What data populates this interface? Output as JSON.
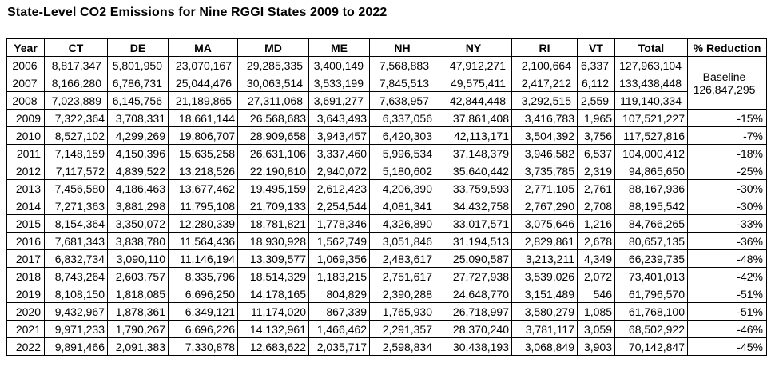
{
  "chart_data": {
    "type": "table",
    "title": "State-Level CO2 Emissions for Nine RGGI States 2009 to 2022",
    "columns": [
      "Year",
      "CT",
      "DE",
      "MA",
      "MD",
      "ME",
      "NH",
      "NY",
      "RI",
      "VT",
      "Total",
      "% Reduction"
    ],
    "baseline_label": "Baseline",
    "baseline_value": "126,847,295",
    "rows": [
      {
        "year": "2006",
        "values": [
          "8,817,347",
          "5,801,950",
          "23,070,167",
          "29,285,335",
          "3,400,149",
          "7,568,883",
          "47,912,271",
          "2,100,664",
          "6,337",
          "127,963,104"
        ],
        "reduction": ""
      },
      {
        "year": "2007",
        "values": [
          "8,166,280",
          "6,786,731",
          "25,044,476",
          "30,063,514",
          "3,533,199",
          "7,845,513",
          "49,575,411",
          "2,417,212",
          "6,112",
          "133,438,448"
        ],
        "reduction": ""
      },
      {
        "year": "2008",
        "values": [
          "7,023,889",
          "6,145,756",
          "21,189,865",
          "27,311,068",
          "3,691,277",
          "7,638,957",
          "42,844,448",
          "3,292,515",
          "2,559",
          "119,140,334"
        ],
        "reduction": ""
      },
      {
        "year": "2009",
        "values": [
          "7,322,364",
          "3,708,331",
          "18,661,144",
          "26,568,683",
          "3,643,493",
          "6,337,056",
          "37,861,408",
          "3,416,783",
          "1,965",
          "107,521,227"
        ],
        "reduction": "-15%"
      },
      {
        "year": "2010",
        "values": [
          "8,527,102",
          "4,299,269",
          "19,806,707",
          "28,909,658",
          "3,943,457",
          "6,420,303",
          "42,113,171",
          "3,504,392",
          "3,756",
          "117,527,816"
        ],
        "reduction": "-7%"
      },
      {
        "year": "2011",
        "values": [
          "7,148,159",
          "4,150,396",
          "15,635,258",
          "26,631,106",
          "3,337,460",
          "5,996,534",
          "37,148,379",
          "3,946,582",
          "6,537",
          "104,000,412"
        ],
        "reduction": "-18%"
      },
      {
        "year": "2012",
        "values": [
          "7,117,572",
          "4,839,522",
          "13,218,526",
          "22,190,810",
          "2,940,072",
          "5,180,602",
          "35,640,442",
          "3,735,785",
          "2,319",
          "94,865,650"
        ],
        "reduction": "-25%"
      },
      {
        "year": "2013",
        "values": [
          "7,456,580",
          "4,186,463",
          "13,677,462",
          "19,495,159",
          "2,612,423",
          "4,206,390",
          "33,759,593",
          "2,771,105",
          "2,761",
          "88,167,936"
        ],
        "reduction": "-30%"
      },
      {
        "year": "2014",
        "values": [
          "7,271,363",
          "3,881,298",
          "11,795,108",
          "21,709,133",
          "2,254,544",
          "4,081,341",
          "34,432,758",
          "2,767,290",
          "2,708",
          "88,195,542"
        ],
        "reduction": "-30%"
      },
      {
        "year": "2015",
        "values": [
          "8,154,364",
          "3,350,072",
          "12,280,339",
          "18,781,821",
          "1,778,346",
          "4,326,890",
          "33,017,571",
          "3,075,646",
          "1,216",
          "84,766,265"
        ],
        "reduction": "-33%"
      },
      {
        "year": "2016",
        "values": [
          "7,681,343",
          "3,838,780",
          "11,564,436",
          "18,930,928",
          "1,562,749",
          "3,051,846",
          "31,194,513",
          "2,829,861",
          "2,678",
          "80,657,135"
        ],
        "reduction": "-36%"
      },
      {
        "year": "2017",
        "values": [
          "6,832,734",
          "3,090,110",
          "11,146,194",
          "13,309,577",
          "1,069,356",
          "2,483,617",
          "25,090,587",
          "3,213,211",
          "4,349",
          "66,239,735"
        ],
        "reduction": "-48%"
      },
      {
        "year": "2018",
        "values": [
          "8,743,264",
          "2,603,757",
          "8,335,796",
          "18,514,329",
          "1,183,215",
          "2,751,617",
          "27,727,938",
          "3,539,026",
          "2,072",
          "73,401,013"
        ],
        "reduction": "-42%"
      },
      {
        "year": "2019",
        "values": [
          "8,108,150",
          "1,818,085",
          "6,696,250",
          "14,178,165",
          "804,829",
          "2,390,288",
          "24,648,770",
          "3,151,489",
          "546",
          "61,796,570"
        ],
        "reduction": "-51%"
      },
      {
        "year": "2020",
        "values": [
          "9,432,967",
          "1,878,361",
          "6,349,121",
          "11,174,020",
          "867,339",
          "1,765,930",
          "26,718,997",
          "3,580,279",
          "1,085",
          "61,768,100"
        ],
        "reduction": "-51%"
      },
      {
        "year": "2021",
        "values": [
          "9,971,233",
          "1,790,267",
          "6,696,226",
          "14,132,961",
          "1,466,462",
          "2,291,357",
          "28,370,240",
          "3,781,117",
          "3,059",
          "68,502,922"
        ],
        "reduction": "-46%"
      },
      {
        "year": "2022",
        "values": [
          "9,891,466",
          "2,091,383",
          "7,330,878",
          "12,683,622",
          "2,035,717",
          "2,598,834",
          "30,438,193",
          "3,068,849",
          "3,903",
          "70,142,847"
        ],
        "reduction": "-45%"
      }
    ]
  }
}
